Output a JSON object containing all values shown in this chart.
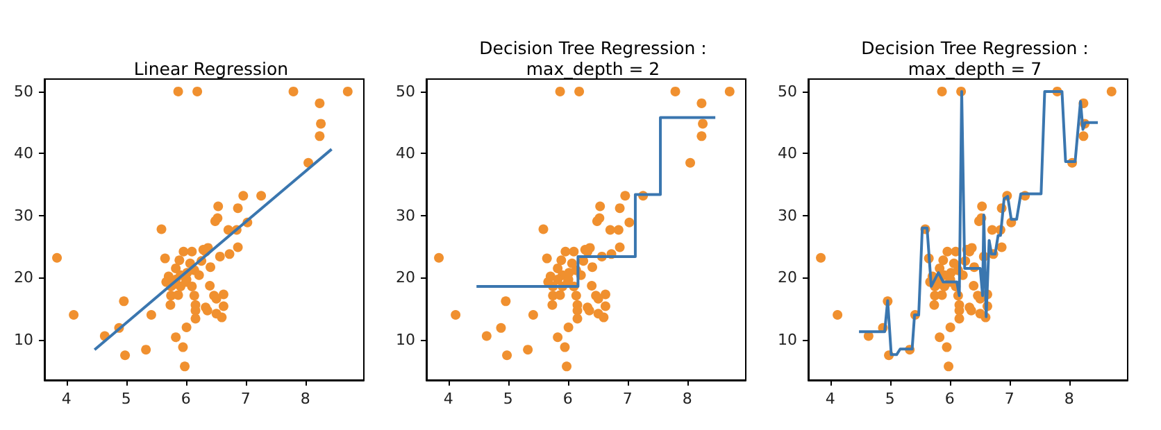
{
  "chart_data": [
    {
      "type": "scatter",
      "title": "Linear Regression",
      "xlim": [
        3.63,
        8.98
      ],
      "ylim": [
        3.5,
        52
      ],
      "xticks": [
        4,
        5,
        6,
        7,
        8
      ],
      "yticks": [
        10,
        20,
        30,
        40,
        50
      ],
      "series": [
        {
          "type": "scatter",
          "marker": "circle",
          "color": "#f0902f",
          "x": [
            3.84,
            4.12,
            4.64,
            4.88,
            4.96,
            4.98,
            5.33,
            5.42,
            5.59,
            5.65,
            5.87,
            6.19,
            7.8,
            8.71,
            8.24,
            8.26,
            8.24,
            8.05,
            6.96,
            7.26,
            7.03,
            6.87,
            6.54,
            6.53,
            6.49,
            6.71,
            6.85,
            6.87,
            6.73,
            6.37,
            6.29,
            6.57,
            6.41,
            6.4,
            6.47,
            6.63,
            6.51,
            6.63,
            6.51,
            6.6,
            6.33,
            6.36,
            6.14,
            6.16,
            6.16,
            6.16,
            6.01,
            5.83,
            5.95,
            5.98,
            5.96,
            6.1,
            5.89,
            5.83,
            5.71,
            5.67,
            5.79,
            5.91,
            5.75,
            5.74,
            5.87,
            6.02,
            6.14,
            6.22,
            6.26,
            6.0,
            6.07,
            6.33,
            5.91,
            5.83,
            5.75,
            6.01,
            6.1
          ],
          "values": [
            23.2,
            14.0,
            10.6,
            11.9,
            16.2,
            7.5,
            8.4,
            14.0,
            27.8,
            23.1,
            50,
            50,
            50,
            50,
            48.1,
            44.8,
            42.8,
            38.5,
            33.2,
            33.2,
            28.9,
            31.2,
            31.5,
            29.6,
            29.1,
            27.7,
            27.7,
            24.9,
            23.8,
            24.8,
            24.5,
            23.4,
            21.7,
            18.7,
            17.1,
            17.3,
            16.6,
            15.4,
            14.2,
            13.6,
            15.2,
            14.7,
            17.1,
            15.6,
            14.7,
            13.4,
            12.0,
            10.4,
            8.8,
            5.7,
            24.2,
            24.2,
            22.8,
            21.5,
            20.2,
            19.3,
            18.9,
            18.6,
            17.1,
            15.6,
            17.2,
            20.8,
            21.2,
            20.4,
            22.7,
            19.3,
            22.3,
            24.2,
            20.4,
            19.7,
            18.6,
            19.7,
            18.6
          ]
        },
        {
          "type": "line",
          "marker": "none",
          "color": "#3a76af",
          "x": [
            4.47,
            8.44
          ],
          "values": [
            8.4,
            40.7
          ]
        }
      ]
    },
    {
      "type": "scatter",
      "title": "Decision Tree Regression :\nmax_depth = 2",
      "xlim": [
        3.63,
        8.98
      ],
      "ylim": [
        3.5,
        52
      ],
      "xticks": [
        4,
        5,
        6,
        7,
        8
      ],
      "yticks": [
        10,
        20,
        30,
        40,
        50
      ],
      "series": [
        {
          "type": "scatter",
          "marker": "circle",
          "color": "#f0902f",
          "x": [
            3.84,
            4.12,
            4.64,
            4.88,
            4.96,
            4.98,
            5.33,
            5.42,
            5.59,
            5.65,
            5.87,
            6.19,
            7.8,
            8.71,
            8.24,
            8.26,
            8.24,
            8.05,
            6.96,
            7.26,
            7.03,
            6.87,
            6.54,
            6.53,
            6.49,
            6.71,
            6.85,
            6.87,
            6.73,
            6.37,
            6.29,
            6.57,
            6.41,
            6.4,
            6.47,
            6.63,
            6.51,
            6.63,
            6.51,
            6.6,
            6.33,
            6.36,
            6.14,
            6.16,
            6.16,
            6.16,
            6.01,
            5.83,
            5.95,
            5.98,
            5.96,
            6.1,
            5.89,
            5.83,
            5.71,
            5.67,
            5.91,
            5.75,
            5.74,
            5.87,
            6.02,
            6.14,
            6.22,
            6.26,
            6.0,
            6.07,
            6.33,
            5.91,
            5.83,
            5.75,
            6.01,
            6.1
          ],
          "values": [
            23.2,
            14.0,
            10.6,
            11.9,
            16.2,
            7.5,
            8.4,
            14.0,
            27.8,
            23.1,
            50,
            50,
            50,
            50,
            48.1,
            44.8,
            42.8,
            38.5,
            33.2,
            33.2,
            28.9,
            31.2,
            31.5,
            29.6,
            29.1,
            27.7,
            27.7,
            24.9,
            23.8,
            24.8,
            24.5,
            23.4,
            21.7,
            18.7,
            17.1,
            17.3,
            16.6,
            15.4,
            14.2,
            13.6,
            15.2,
            14.7,
            17.1,
            15.6,
            14.7,
            13.4,
            12.0,
            10.4,
            8.8,
            5.7,
            24.2,
            24.2,
            22.8,
            21.5,
            20.2,
            19.3,
            18.6,
            17.1,
            15.6,
            17.2,
            20.8,
            21.2,
            20.4,
            22.7,
            19.3,
            22.3,
            24.2,
            20.4,
            19.7,
            18.6,
            19.7,
            18.6
          ]
        },
        {
          "type": "line",
          "marker": "none",
          "color": "#3a76af",
          "x": [
            4.47,
            6.17,
            6.17,
            7.13,
            7.13,
            7.55,
            7.55,
            8.47
          ],
          "values": [
            18.6,
            18.6,
            23.4,
            23.4,
            33.4,
            33.4,
            45.8,
            45.8
          ]
        }
      ]
    },
    {
      "type": "scatter",
      "title": "Decision Tree Regression :\nmax_depth = 7",
      "xlim": [
        3.63,
        8.98
      ],
      "ylim": [
        3.5,
        52
      ],
      "xticks": [
        4,
        5,
        6,
        7,
        8
      ],
      "yticks": [
        10,
        20,
        30,
        40,
        50
      ],
      "series": [
        {
          "type": "scatter",
          "marker": "circle",
          "color": "#f0902f",
          "x": [
            3.84,
            4.12,
            4.64,
            4.88,
            4.96,
            4.98,
            5.33,
            5.42,
            5.59,
            5.65,
            5.87,
            6.19,
            7.8,
            8.71,
            8.24,
            8.26,
            8.24,
            8.05,
            6.96,
            7.26,
            7.03,
            6.87,
            6.54,
            6.53,
            6.49,
            6.71,
            6.85,
            6.87,
            6.73,
            6.37,
            6.29,
            6.57,
            6.41,
            6.4,
            6.47,
            6.63,
            6.51,
            6.63,
            6.51,
            6.6,
            6.33,
            6.36,
            6.14,
            6.16,
            6.16,
            6.16,
            6.01,
            5.83,
            5.95,
            5.98,
            5.96,
            6.1,
            5.89,
            5.83,
            5.71,
            5.67,
            5.79,
            5.91,
            5.75,
            5.74,
            5.87,
            6.02,
            6.14,
            6.22,
            6.26,
            6.0,
            6.07,
            6.33,
            5.91,
            5.83,
            5.75,
            6.01,
            6.1
          ],
          "values": [
            23.2,
            14.0,
            10.6,
            11.9,
            16.2,
            7.5,
            8.4,
            14.0,
            27.8,
            23.1,
            50,
            50,
            50,
            50,
            48.1,
            44.8,
            42.8,
            38.5,
            33.2,
            33.2,
            28.9,
            31.2,
            31.5,
            29.6,
            29.1,
            27.7,
            27.7,
            24.9,
            23.8,
            24.8,
            24.5,
            23.4,
            21.7,
            18.7,
            17.1,
            17.3,
            16.6,
            15.4,
            14.2,
            13.6,
            15.2,
            14.7,
            17.1,
            15.6,
            14.7,
            13.4,
            12.0,
            10.4,
            8.8,
            5.7,
            24.2,
            24.2,
            22.8,
            21.5,
            20.2,
            19.3,
            18.9,
            18.6,
            17.1,
            15.6,
            17.2,
            20.8,
            21.2,
            20.4,
            22.7,
            19.3,
            22.3,
            24.2,
            20.4,
            19.7,
            18.6,
            19.7,
            18.6
          ]
        },
        {
          "type": "line",
          "marker": "none",
          "color": "#3a76af",
          "x": [
            4.48,
            4.91,
            4.96,
            5.02,
            5.11,
            5.17,
            5.37,
            5.41,
            5.48,
            5.54,
            5.62,
            5.69,
            5.81,
            5.89,
            6.12,
            6.16,
            6.2,
            6.25,
            6.51,
            6.55,
            6.57,
            6.61,
            6.66,
            6.7,
            6.76,
            6.81,
            6.85,
            6.91,
            6.97,
            7.03,
            7.12,
            7.19,
            7.53,
            7.59,
            7.88,
            7.94,
            8.1,
            8.19,
            8.23,
            8.27,
            8.48
          ],
          "values": [
            11.3,
            11.3,
            16.3,
            7.6,
            7.6,
            8.5,
            8.5,
            14.0,
            14.0,
            28.0,
            28.0,
            18.6,
            20.8,
            19.3,
            19.3,
            17.1,
            50,
            21.5,
            21.5,
            17.1,
            30.1,
            13.7,
            26.0,
            23.8,
            23.8,
            26.8,
            26.8,
            32.7,
            33.1,
            29.4,
            29.4,
            33.5,
            33.5,
            50,
            50,
            38.7,
            38.7,
            48.4,
            43.9,
            45.0,
            45.0
          ]
        }
      ]
    }
  ]
}
